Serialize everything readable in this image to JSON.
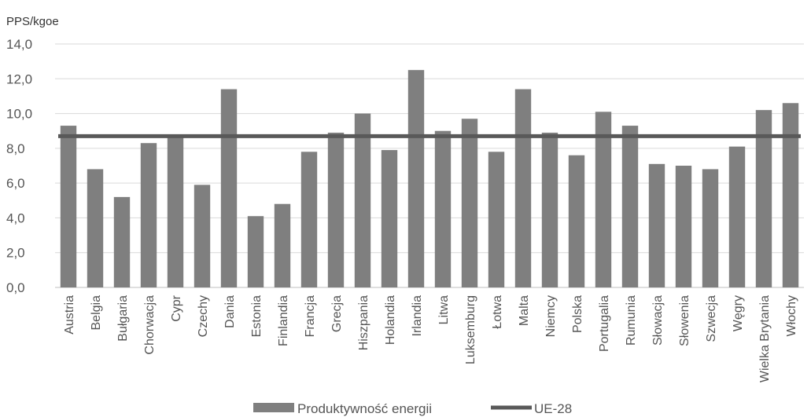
{
  "chart_data": {
    "type": "bar",
    "ylabel": "PPS/kgoe",
    "ylim": [
      0,
      14
    ],
    "yticks": [
      "0,0",
      "2,0",
      "4,0",
      "6,0",
      "8,0",
      "10,0",
      "12,0",
      "14,0"
    ],
    "grid": true,
    "categories": [
      "Austria",
      "Belgia",
      "Bułgaria",
      "Chorwacja",
      "Cypr",
      "Czechy",
      "Dania",
      "Estonia",
      "Finlandia",
      "Francja",
      "Grecja",
      "Hiszpania",
      "Holandia",
      "Irlandia",
      "Litwa",
      "Luksemburg",
      "Łotwa",
      "Malta",
      "Niemcy",
      "Polska",
      "Portugalia",
      "Rumunia",
      "Słowacja",
      "Słowenia",
      "Szwecja",
      "Węgry",
      "Wielka Brytania",
      "Włochy"
    ],
    "series": [
      {
        "name": "Produktywność energii",
        "type": "bar",
        "color": "#7f7f7f",
        "values": [
          9.3,
          6.8,
          5.2,
          8.3,
          8.8,
          5.9,
          11.4,
          4.1,
          4.8,
          7.8,
          8.9,
          10.0,
          7.9,
          12.5,
          9.0,
          9.7,
          7.8,
          11.4,
          8.9,
          7.6,
          10.1,
          9.3,
          7.1,
          7.0,
          6.8,
          8.1,
          10.2,
          10.6
        ]
      },
      {
        "name": "UE-28",
        "type": "line",
        "color": "#595959",
        "value": 8.7
      }
    ],
    "legend_position": "bottom-center"
  }
}
